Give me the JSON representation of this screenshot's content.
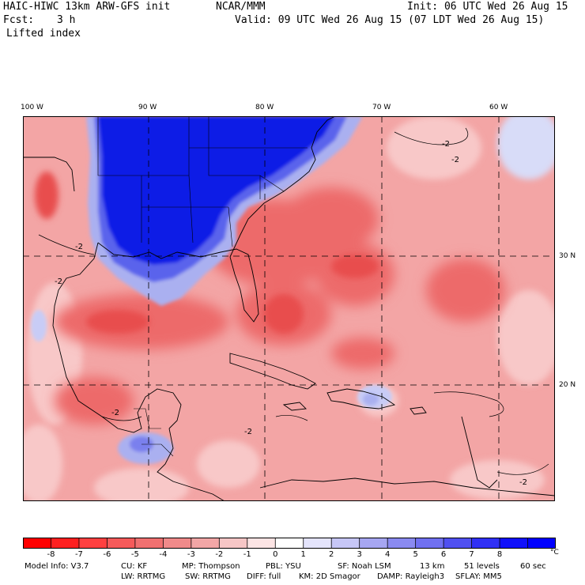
{
  "header": {
    "model_title": "HAIC-HIWC 13km ARW-GFS init",
    "org": "NCAR/MMM",
    "init": "Init: 06 UTC Wed 26 Aug 15",
    "fcst_label": "Fcst:",
    "fcst_value": "3 h",
    "valid": "Valid: 09 UTC Wed 26 Aug 15 (07 LDT Wed 26 Aug 15)",
    "field": "Lifted index"
  },
  "map": {
    "lon_labels": [
      "100 W",
      "90 W",
      "80 W",
      "70 W",
      "60 W"
    ],
    "lat_labels": [
      "30 N",
      "20 N"
    ],
    "contour_labels": [
      "-2",
      "-2",
      "-2",
      "-2",
      "-2",
      "-2",
      "-2"
    ],
    "colors": {
      "cold": "#0a1ee6",
      "warm": "#f06a6a"
    }
  },
  "colorbar": {
    "ticks": [
      "-8",
      "-7",
      "-6",
      "-5",
      "-4",
      "-3",
      "-2",
      "-1",
      "0",
      "1",
      "2",
      "3",
      "4",
      "5",
      "6",
      "7",
      "8"
    ],
    "unit": "°C",
    "colors": [
      "#ff0000",
      "#ff2020",
      "#ff4040",
      "#f65a5a",
      "#f07070",
      "#f08a8a",
      "#f2a6a6",
      "#f7c6c6",
      "#fce4e4",
      "#ffffff",
      "#e4e4fc",
      "#c6c6f7",
      "#a6a6f2",
      "#8a8af0",
      "#7070f0",
      "#5050f0",
      "#3030f5",
      "#1010fa",
      "#0000ff"
    ]
  },
  "footer": {
    "line1": {
      "model_info": "Model Info: V3.7",
      "cu": "CU: KF",
      "mp": "MP: Thompson",
      "pbl": "PBL: YSU",
      "sf": "SF: Noah LSM",
      "res": "13 km",
      "levels": "51 levels",
      "dt": "60 sec"
    },
    "line2": {
      "lw": "LW: RRTMG",
      "sw": "SW: RRTMG",
      "diff": "DIFF: full",
      "km": "KM: 2D Smagor",
      "damp": "DAMP: Rayleigh3",
      "sflay": "SFLAY: MM5"
    }
  }
}
